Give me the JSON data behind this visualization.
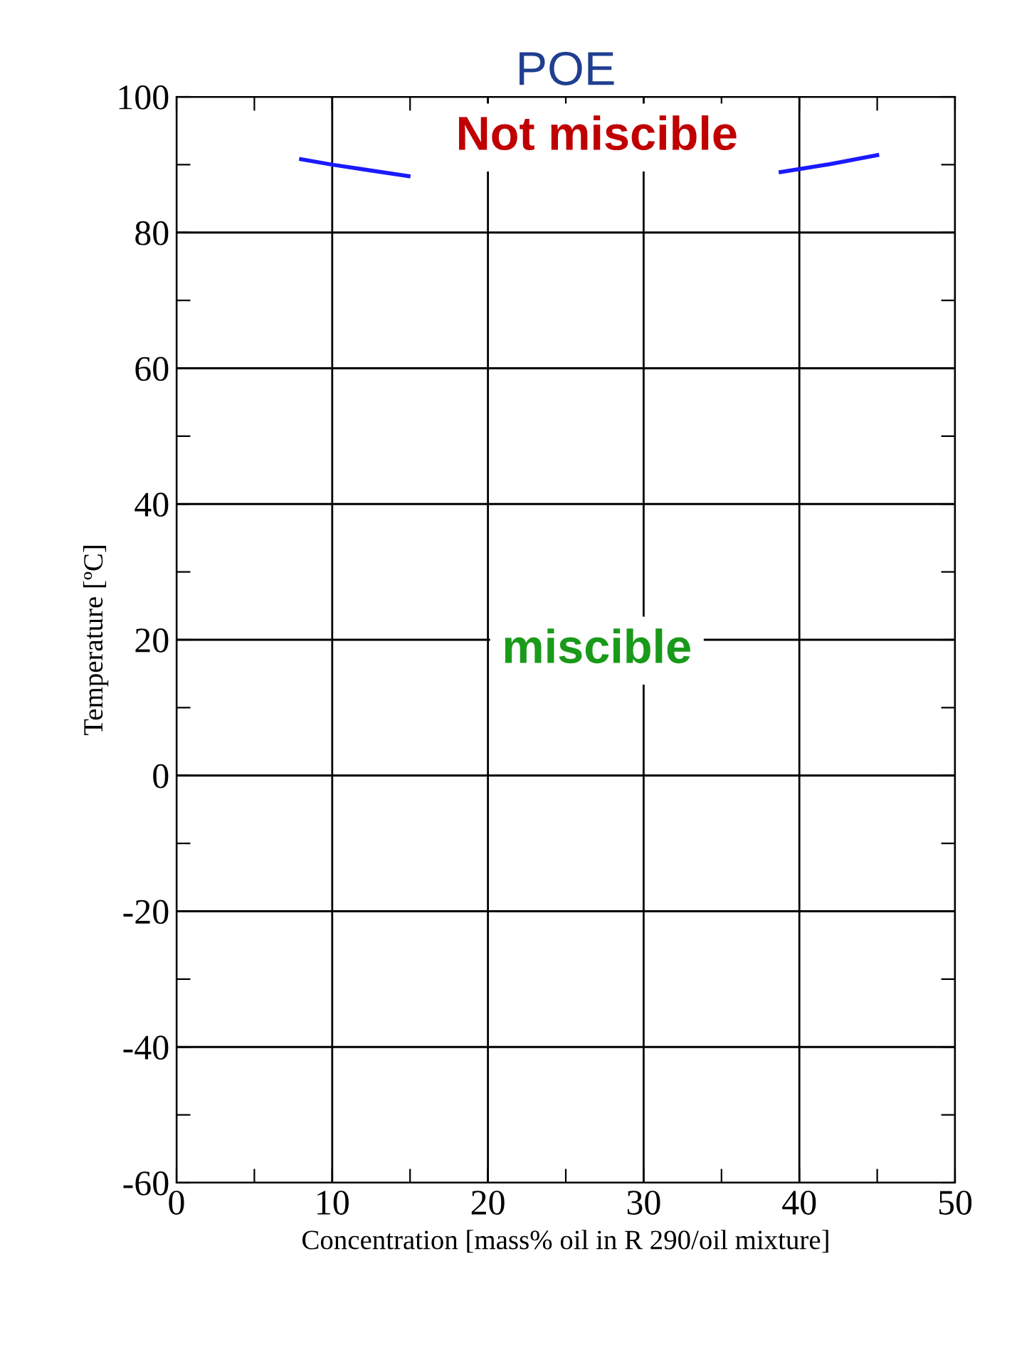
{
  "chart_data": {
    "type": "line",
    "title": "POE",
    "xlabel": "Concentration [mass% oil in R 290/oil mixture]",
    "ylabel": "Temperature [ºC]",
    "x": [
      8.0,
      10,
      14.9,
      null,
      38.8,
      42,
      45
    ],
    "series": [
      {
        "color": "#1a1aff",
        "values": [
          90.8,
          90.0,
          88.3,
          null,
          88.9,
          90.1,
          91.4
        ]
      }
    ],
    "xlim": [
      0,
      50
    ],
    "ylim": [
      -60,
      100
    ],
    "xticks": [
      0,
      {
        "value": 5,
        "label": null
      },
      10,
      {
        "value": 15,
        "label": null
      },
      20,
      {
        "value": 25,
        "label": null
      },
      30,
      {
        "value": 35,
        "label": null
      },
      40,
      {
        "value": 45,
        "label": null
      },
      50
    ],
    "yticks": [
      -60,
      {
        "value": -50,
        "label": null
      },
      -40,
      {
        "value": -30,
        "label": null
      },
      -20,
      {
        "value": -10,
        "label": null
      },
      0,
      {
        "value": 10,
        "label": null
      },
      20,
      {
        "value": 30,
        "label": null
      },
      40,
      {
        "value": 50,
        "label": null
      },
      60,
      {
        "value": 70,
        "label": null
      },
      80,
      {
        "value": 90,
        "label": null
      },
      100
    ],
    "grid": true,
    "line_style": "solid",
    "annotations": [
      "Not miscible",
      "miscible"
    ]
  }
}
